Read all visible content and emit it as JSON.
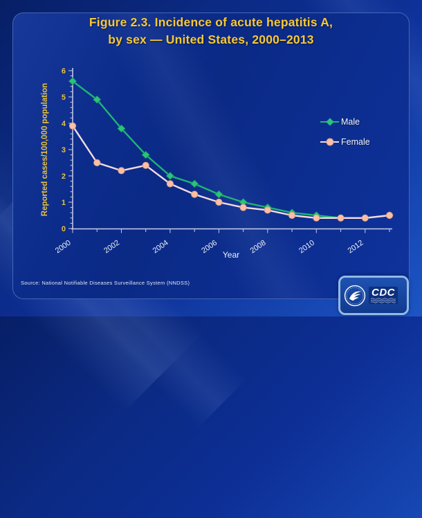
{
  "slide": {
    "title_line1": "Figure 2.3. Incidence of acute hepatitis A,",
    "title_line2": "by sex — United States, 2000–2013",
    "source": "Source: National Notifiable Diseases Surveillance System (NNDSS)",
    "logo": {
      "cdc_text": "CDC"
    }
  },
  "colors": {
    "background": "#0d2f96",
    "panel_border": "#6f9ad8",
    "title_text": "#f7c837",
    "y_axis_text": "#e9c23c",
    "x_axis_text": "#eef2fa",
    "axis_line": "#c9cde8",
    "male_line": "#1fb571",
    "male_marker": "#2cc27d",
    "female_line": "#f3dce0",
    "female_marker": "#f9c0a4",
    "female_marker_edge": "#df9c88",
    "legend_text": "#f2f5fc",
    "source_text": "#dfe6f5",
    "logo_border": "#93b9e4"
  },
  "chart_data": {
    "type": "line",
    "title": "Figure 2.3. Incidence of acute hepatitis A, by sex — United States, 2000–2013",
    "xlabel": "Year",
    "ylabel": "Reported cases/100,000 population",
    "ylim": [
      0,
      6
    ],
    "y_major_step": 1,
    "y_minor_step": 0.2,
    "grid": false,
    "legend_position": "right-upper",
    "x": [
      2000,
      2001,
      2002,
      2003,
      2004,
      2005,
      2006,
      2007,
      2008,
      2009,
      2010,
      2011,
      2012,
      2013
    ],
    "xticks_labeled": [
      2000,
      2002,
      2004,
      2006,
      2008,
      2010,
      2012
    ],
    "series": [
      {
        "name": "Male",
        "marker": "diamond",
        "line_color": "#1fb571",
        "marker_color": "#2cc27d",
        "marker_edge": "#17995e",
        "values": [
          5.6,
          4.9,
          3.8,
          2.8,
          2.0,
          1.7,
          1.3,
          1.0,
          0.8,
          0.6,
          0.5,
          0.4,
          0.4,
          0.5
        ]
      },
      {
        "name": "Female",
        "marker": "circle",
        "line_color": "#f3dce0",
        "marker_color": "#f9c0a4",
        "marker_edge": "#df9c88",
        "values": [
          3.9,
          2.5,
          2.2,
          2.4,
          1.7,
          1.3,
          1.0,
          0.8,
          0.7,
          0.5,
          0.4,
          0.4,
          0.4,
          0.5
        ]
      }
    ]
  }
}
